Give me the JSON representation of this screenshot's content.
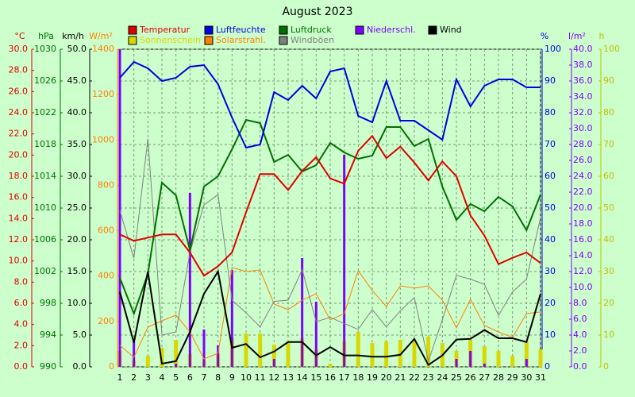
{
  "chart_data": {
    "type": "line",
    "title": "August 2023",
    "categories": [
      "1",
      "2",
      "3",
      "4",
      "5",
      "6",
      "7",
      "8",
      "9",
      "10",
      "11",
      "12",
      "13",
      "14",
      "15",
      "16",
      "17",
      "18",
      "19",
      "20",
      "21",
      "22",
      "23",
      "24",
      "25",
      "26",
      "27",
      "28",
      "29",
      "30",
      "31"
    ],
    "grid": true,
    "axes": [
      {
        "label": "°C",
        "side": "left",
        "color": "#e00000",
        "lim": [
          0,
          30
        ],
        "ticks": [
          {
            "value": 0,
            "label": "0.0"
          },
          {
            "value": 2,
            "label": "2.0"
          },
          {
            "value": 4,
            "label": "4.0"
          },
          {
            "value": 6,
            "label": "6.0"
          },
          {
            "value": 8,
            "label": "8.0"
          },
          {
            "value": 10,
            "label": "10.0"
          },
          {
            "value": 12,
            "label": "12.0"
          },
          {
            "value": 14,
            "label": "14.0"
          },
          {
            "value": 16,
            "label": "16.0"
          },
          {
            "value": 18,
            "label": "18.0"
          },
          {
            "value": 20,
            "label": "20.0"
          },
          {
            "value": 22,
            "label": "22.0"
          },
          {
            "value": 24,
            "label": "24.0"
          },
          {
            "value": 26,
            "label": "26.0"
          },
          {
            "value": 28,
            "label": "28.0"
          },
          {
            "value": 30,
            "label": "30.0"
          }
        ]
      },
      {
        "label": "hPa",
        "side": "left",
        "color": "#007000",
        "lim": [
          990,
          1030
        ],
        "ticks": [
          990,
          994,
          998,
          1002,
          1006,
          1010,
          1014,
          1018,
          1022,
          1026,
          1030
        ]
      },
      {
        "label": "km/h",
        "side": "left",
        "color": "#000000",
        "lim": [
          0,
          50
        ],
        "ticks": [
          {
            "value": 0,
            "label": "0.0"
          },
          {
            "value": 5,
            "label": "5.0"
          },
          {
            "value": 10,
            "label": "10.0"
          },
          {
            "value": 15,
            "label": "15.0"
          },
          {
            "value": 20,
            "label": "20.0"
          },
          {
            "value": 25,
            "label": "25.0"
          },
          {
            "value": 30,
            "label": "30.0"
          },
          {
            "value": 35,
            "label": "35.0"
          },
          {
            "value": 40,
            "label": "40.0"
          },
          {
            "value": 45,
            "label": "45.0"
          },
          {
            "value": 50,
            "label": "50.0"
          }
        ]
      },
      {
        "label": "W/m²",
        "side": "left",
        "color": "#ff8000",
        "lim": [
          0,
          1400
        ],
        "ticks": [
          0,
          200,
          400,
          600,
          800,
          1000,
          1200,
          1400
        ]
      },
      {
        "label": "%",
        "side": "right",
        "color": "#0000e0",
        "lim": [
          0,
          100
        ],
        "ticks": [
          0,
          10,
          20,
          30,
          40,
          50,
          60,
          70,
          80,
          90,
          100
        ]
      },
      {
        "label": "l/m²",
        "side": "right",
        "color": "#8000ff",
        "lim": [
          0,
          40
        ],
        "ticks": [
          {
            "value": 0,
            "label": "0.0"
          },
          {
            "value": 2,
            "label": "2.0"
          },
          {
            "value": 4,
            "label": "4.0"
          },
          {
            "value": 6,
            "label": "6.0"
          },
          {
            "value": 8,
            "label": "8.0"
          },
          {
            "value": 10,
            "label": "10.0"
          },
          {
            "value": 12,
            "label": "12.0"
          },
          {
            "value": 14,
            "label": "14.0"
          },
          {
            "value": 16,
            "label": "16.0"
          },
          {
            "value": 18,
            "label": "18.0"
          },
          {
            "value": 20,
            "label": "20.0"
          },
          {
            "value": 22,
            "label": "22.0"
          },
          {
            "value": 24,
            "label": "24.0"
          },
          {
            "value": 26,
            "label": "26.0"
          },
          {
            "value": 28,
            "label": "28.0"
          },
          {
            "value": 30,
            "label": "30.0"
          },
          {
            "value": 32,
            "label": "32.0"
          },
          {
            "value": 34,
            "label": "34.0"
          },
          {
            "value": 36,
            "label": "36.0"
          },
          {
            "value": 38,
            "label": "38.0"
          },
          {
            "value": 40,
            "label": "40.0"
          }
        ]
      },
      {
        "label": "h",
        "side": "right",
        "color": "#c0c000",
        "lim": [
          0,
          100
        ],
        "ticks": [
          0,
          10,
          20,
          30,
          40,
          50,
          60,
          70,
          80,
          90,
          100
        ]
      }
    ],
    "series": [
      {
        "name": "Sonnenschein",
        "color": "#d8d800",
        "mark": "bar",
        "axis": 6,
        "values": [
          5,
          2,
          3.5,
          6,
          8.5,
          4,
          2,
          4,
          9,
          10.5,
          10.5,
          7,
          8,
          9,
          5.5,
          1,
          8,
          11,
          7.5,
          8,
          8.5,
          8.5,
          9.5,
          7.5,
          5,
          8.5,
          6.5,
          5,
          3.5,
          8,
          5.5
        ]
      },
      {
        "name": "Niederschl.",
        "color": "#8000ff",
        "mark": "bar",
        "axis": 5,
        "values": [
          40,
          3.2,
          0,
          0,
          0.4,
          21.9,
          4.7,
          2.7,
          12.2,
          0,
          0,
          1,
          0,
          13.7,
          8.2,
          0,
          26.7,
          0,
          0,
          0,
          0,
          0,
          0,
          0,
          1,
          2,
          0.4,
          0,
          0,
          1,
          0
        ]
      },
      {
        "name": "Solarstrahl.",
        "color": "#ff8000",
        "mark": "line",
        "axis": 3,
        "width": 1,
        "values": [
          95,
          42,
          175,
          203,
          228,
          154,
          35,
          60,
          438,
          420,
          427,
          277,
          252,
          294,
          322,
          207,
          235,
          424,
          336,
          266,
          357,
          347,
          357,
          294,
          172,
          298,
          182,
          154,
          130,
          235,
          242
        ]
      },
      {
        "name": "Windböen",
        "color": "#808080",
        "mark": "line",
        "axis": 2,
        "width": 1,
        "values": [
          24.6,
          17.1,
          35.9,
          5,
          5.5,
          18,
          25.5,
          27.1,
          10.5,
          8.5,
          6.3,
          10.3,
          10.5,
          15.3,
          7.1,
          7.8,
          6.8,
          5.9,
          9,
          6.3,
          8.8,
          10.9,
          0.9,
          7.4,
          14.4,
          13.8,
          13,
          8.1,
          11.8,
          13.8,
          23.5
        ]
      },
      {
        "name": "Luftdruck",
        "color": "#007000",
        "mark": "line",
        "axis": 1,
        "width": 2,
        "values": [
          1001.2,
          996.7,
          1001.7,
          1013.2,
          1011.6,
          1004.7,
          1012.7,
          1014,
          1017.4,
          1021.1,
          1020.7,
          1015.8,
          1016.7,
          1014.6,
          1015.4,
          1018.2,
          1017,
          1016.2,
          1016.6,
          1020.2,
          1020.2,
          1017.8,
          1018.7,
          1012.7,
          1008.5,
          1010.5,
          1009.6,
          1011.4,
          1010.2,
          1007.2,
          1011.7
        ]
      },
      {
        "name": "Luftfeuchte",
        "color": "#0000e0",
        "mark": "line",
        "axis": 4,
        "width": 2,
        "values": [
          91,
          96,
          94,
          90,
          91,
          94.5,
          95,
          89,
          78.5,
          69,
          70,
          86.5,
          84,
          88.5,
          84.5,
          93,
          94,
          79,
          77,
          90,
          77.5,
          77.5,
          74.5,
          71.5,
          90.5,
          82,
          88.5,
          90.5,
          90.5,
          88,
          88
        ]
      },
      {
        "name": "Temperatur",
        "color": "#e00000",
        "mark": "line",
        "axis": 0,
        "width": 2,
        "values": [
          12.5,
          11.9,
          12.2,
          12.5,
          12.5,
          10.8,
          8.6,
          9.5,
          10.8,
          14.6,
          18.2,
          18.2,
          16.7,
          18.5,
          19.8,
          17.8,
          17.3,
          20.4,
          21.8,
          19.7,
          20.8,
          19.3,
          17.6,
          19.4,
          18,
          14.3,
          12.4,
          9.7,
          10.3,
          10.8,
          9.8
        ]
      },
      {
        "name": "Wind",
        "color": "#000000",
        "mark": "line",
        "axis": 2,
        "width": 2,
        "values": [
          11.8,
          3.8,
          15,
          0.5,
          0.9,
          5.5,
          11.5,
          15,
          3,
          3.6,
          1.5,
          2.4,
          3.9,
          3.9,
          1.8,
          3.1,
          1.8,
          1.8,
          1.6,
          1.6,
          1.9,
          4.4,
          0.3,
          1.8,
          4.3,
          4.4,
          5.8,
          4.5,
          4.5,
          3.9,
          11.5
        ]
      }
    ]
  }
}
